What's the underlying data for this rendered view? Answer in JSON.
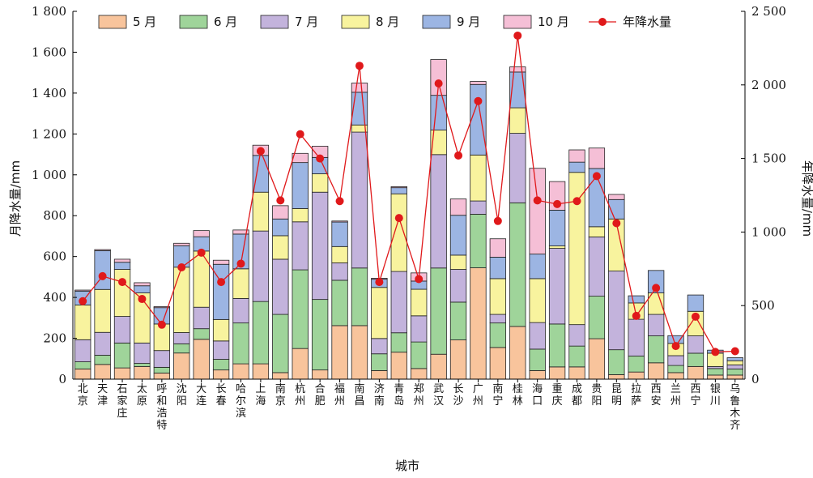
{
  "chart_data": {
    "type": "bar",
    "subtype": "stacked-bar-with-line",
    "xlabel": "城市",
    "ylabel_left": "月降水量/mm",
    "ylabel_right": "年降水量/mm",
    "ylim_left": [
      0,
      1800
    ],
    "ylim_right": [
      0,
      2500
    ],
    "yticks_left": [
      "0",
      "200",
      "400",
      "600",
      "800",
      "1 000",
      "1 200",
      "1 400",
      "1 600",
      "1 800"
    ],
    "yticks_right": [
      "0",
      "500",
      "1 000",
      "1 500",
      "2 000",
      "2 500"
    ],
    "legend_position": "top",
    "categories": [
      "北京",
      "天津",
      "石家庄",
      "太原",
      "呼和浩特",
      "沈阳",
      "大连",
      "长春",
      "哈尔滨",
      "上海",
      "南京",
      "杭州",
      "合肥",
      "福州",
      "南昌",
      "济南",
      "青岛",
      "郑州",
      "武汉",
      "长沙",
      "广州",
      "南宁",
      "桂林",
      "海口",
      "重庆",
      "成都",
      "贵阳",
      "昆明",
      "拉萨",
      "西安",
      "兰州",
      "西宁",
      "银川",
      "乌鲁木齐"
    ],
    "series": [
      {
        "name": "5 月",
        "color": "#f8c49c",
        "axis": "left",
        "values": [
          50,
          72,
          55,
          62,
          30,
          128,
          195,
          45,
          75,
          75,
          32,
          150,
          45,
          262,
          262,
          42,
          132,
          52,
          122,
          192,
          545,
          155,
          258,
          42,
          60,
          60,
          198,
          22,
          35,
          80,
          32,
          62,
          20,
          20
        ]
      },
      {
        "name": "6 月",
        "color": "#9fd49a",
        "axis": "left",
        "values": [
          35,
          45,
          122,
          15,
          28,
          45,
          52,
          52,
          200,
          305,
          285,
          385,
          345,
          222,
          282,
          82,
          95,
          130,
          422,
          185,
          262,
          120,
          605,
          105,
          210,
          102,
          208,
          122,
          78,
          132,
          35,
          65,
          32,
          30
        ]
      },
      {
        "name": "7 月",
        "color": "#c3b3dc",
        "axis": "left",
        "values": [
          108,
          112,
          130,
          100,
          82,
          55,
          105,
          90,
          120,
          345,
          270,
          235,
          525,
          85,
          665,
          75,
          300,
          128,
          555,
          160,
          65,
          42,
          340,
          130,
          370,
          105,
          290,
          385,
          180,
          105,
          48,
          85,
          10,
          20
        ]
      },
      {
        "name": "8 月",
        "color": "#f8f39e",
        "axis": "left",
        "values": [
          170,
          210,
          230,
          245,
          130,
          320,
          275,
          105,
          145,
          190,
          115,
          65,
          90,
          80,
          35,
          250,
          380,
          130,
          120,
          70,
          225,
          175,
          125,
          215,
          12,
          745,
          50,
          255,
          80,
          105,
          60,
          120,
          65,
          20
        ]
      },
      {
        "name": "9 月",
        "color": "#9cb5e3",
        "axis": "left",
        "values": [
          68,
          190,
          35,
          35,
          80,
          105,
          70,
          270,
          170,
          180,
          82,
          225,
          80,
          120,
          160,
          40,
          30,
          40,
          170,
          195,
          345,
          105,
          175,
          120,
          175,
          50,
          285,
          95,
          35,
          110,
          38,
          80,
          15,
          15
        ]
      },
      {
        "name": "10 月",
        "color": "#f5bfd6",
        "axis": "left",
        "values": [
          5,
          5,
          15,
          15,
          5,
          12,
          30,
          20,
          20,
          50,
          65,
          45,
          55,
          5,
          45,
          5,
          5,
          40,
          175,
          80,
          15,
          90,
          25,
          420,
          140,
          60,
          100,
          25,
          0,
          0,
          0,
          0,
          0,
          0
        ]
      },
      {
        "name": "年降水量",
        "type": "line",
        "color": "#e0191b",
        "axis": "right",
        "values": [
          530,
          700,
          660,
          545,
          370,
          760,
          860,
          660,
          785,
          1550,
          1215,
          1665,
          1500,
          1210,
          2130,
          660,
          1095,
          680,
          2010,
          1520,
          1890,
          1075,
          2335,
          1215,
          1190,
          1210,
          1380,
          1060,
          430,
          620,
          225,
          425,
          185,
          190
        ]
      }
    ]
  }
}
